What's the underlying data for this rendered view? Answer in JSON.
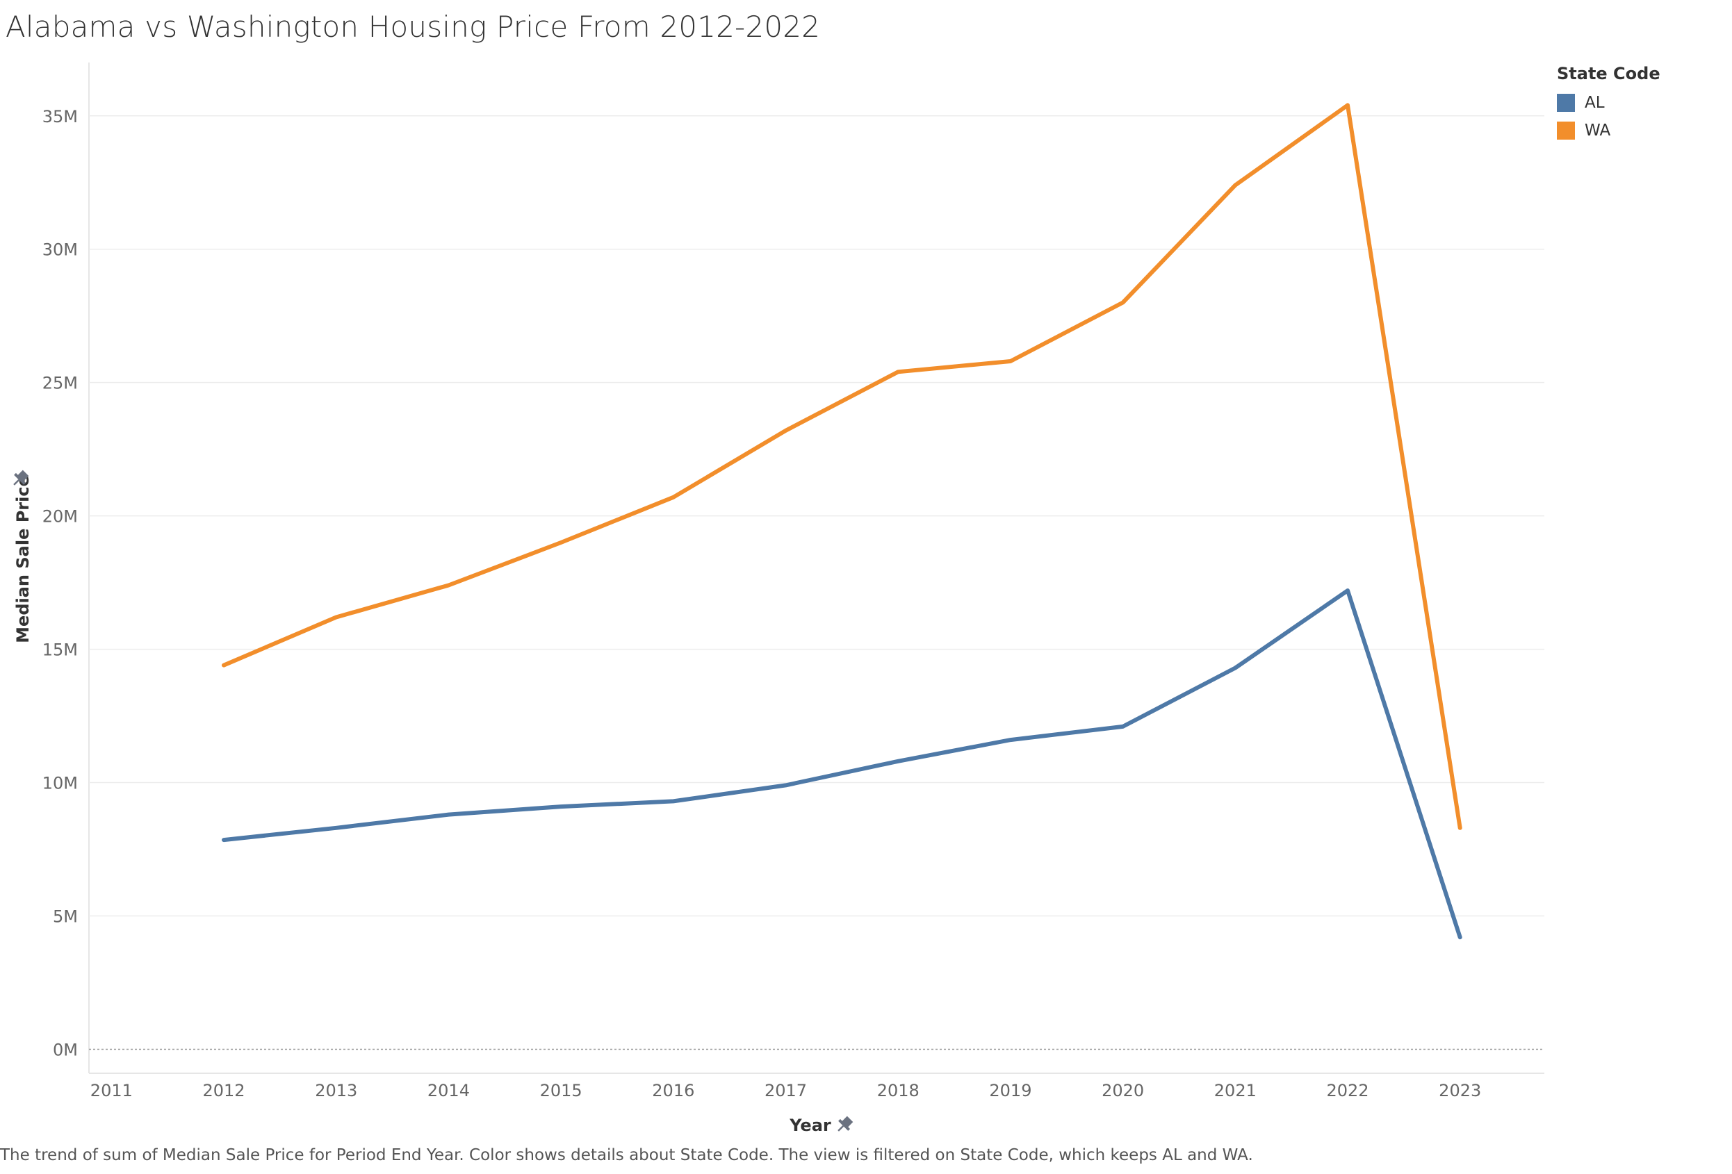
{
  "title": "Alabama vs Washington Housing Price From 2012-2022",
  "footnote": "The trend of sum of Median Sale Price for Period End Year.  Color shows details about State Code. The view is filtered on State Code, which keeps AL and WA.",
  "colors": {
    "AL": "#4e79a7",
    "WA": "#f28e2b"
  },
  "legend": {
    "title": "State Code",
    "items": [
      {
        "label": "AL",
        "color": "#4e79a7"
      },
      {
        "label": "WA",
        "color": "#f28e2b"
      }
    ]
  },
  "chart_data": {
    "type": "line",
    "xlabel": "Year",
    "ylabel": "Median Sale Price",
    "x_ticks": [
      2011,
      2012,
      2013,
      2014,
      2015,
      2016,
      2017,
      2018,
      2019,
      2020,
      2021,
      2022,
      2023
    ],
    "y_ticks": [
      0,
      5,
      10,
      15,
      20,
      25,
      30,
      35
    ],
    "y_tick_labels": [
      "0M",
      "5M",
      "10M",
      "15M",
      "20M",
      "25M",
      "30M",
      "35M"
    ],
    "xlim": [
      2010.8,
      2023.75
    ],
    "ylim": [
      -0.9,
      37.0
    ],
    "grid": true,
    "legend_position": "top-right",
    "x": [
      2012,
      2013,
      2014,
      2015,
      2016,
      2017,
      2018,
      2019,
      2020,
      2021,
      2022,
      2023
    ],
    "series": [
      {
        "name": "AL",
        "values": [
          7.85,
          8.3,
          8.8,
          9.1,
          9.3,
          9.9,
          10.8,
          11.6,
          12.1,
          14.3,
          17.2,
          4.2
        ]
      },
      {
        "name": "WA",
        "values": [
          14.4,
          16.2,
          17.4,
          19.0,
          20.7,
          23.2,
          25.4,
          25.8,
          28.0,
          32.4,
          35.4,
          8.3
        ]
      }
    ]
  }
}
